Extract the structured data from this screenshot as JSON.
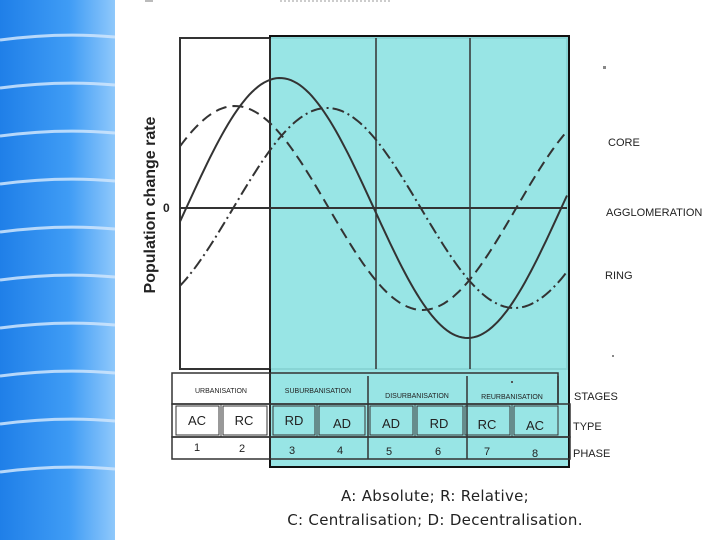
{
  "theme": {
    "sidebar_color": "#2f8ff0",
    "highlight_color": "#8fe3e3",
    "line_color": "#333333"
  },
  "figure": {
    "y_axis_label": "Population change rate",
    "zero_label": "0",
    "curves": [
      {
        "name": "CORE",
        "style": "solid",
        "phase_shift_deg": -90
      },
      {
        "name": "AGGLOMERATION",
        "style": "dashed",
        "phase_shift_deg": -45
      },
      {
        "name": "RING",
        "style": "dash-dot",
        "phase_shift_deg": 0
      }
    ],
    "stages_label": "STAGES",
    "type_label": "TYPE",
    "phase_label": "PHASE",
    "stages": [
      "URBANISATION",
      "SUBURBANISATION",
      "DISURBANISATION",
      "REURBANISATION"
    ],
    "types": [
      "AC",
      "RC",
      "RD",
      "AD",
      "AD",
      "RD",
      "RC",
      "AC"
    ],
    "phases": [
      "1",
      "2",
      "3",
      "4",
      "5",
      "6",
      "7",
      "8"
    ],
    "highlighted_phases": [
      "3",
      "4",
      "5",
      "6",
      "7",
      "8"
    ]
  },
  "caption": {
    "line1": "A: Absolute; R: Relative;",
    "line2": "C: Centralisation; D: Decentralisation."
  }
}
